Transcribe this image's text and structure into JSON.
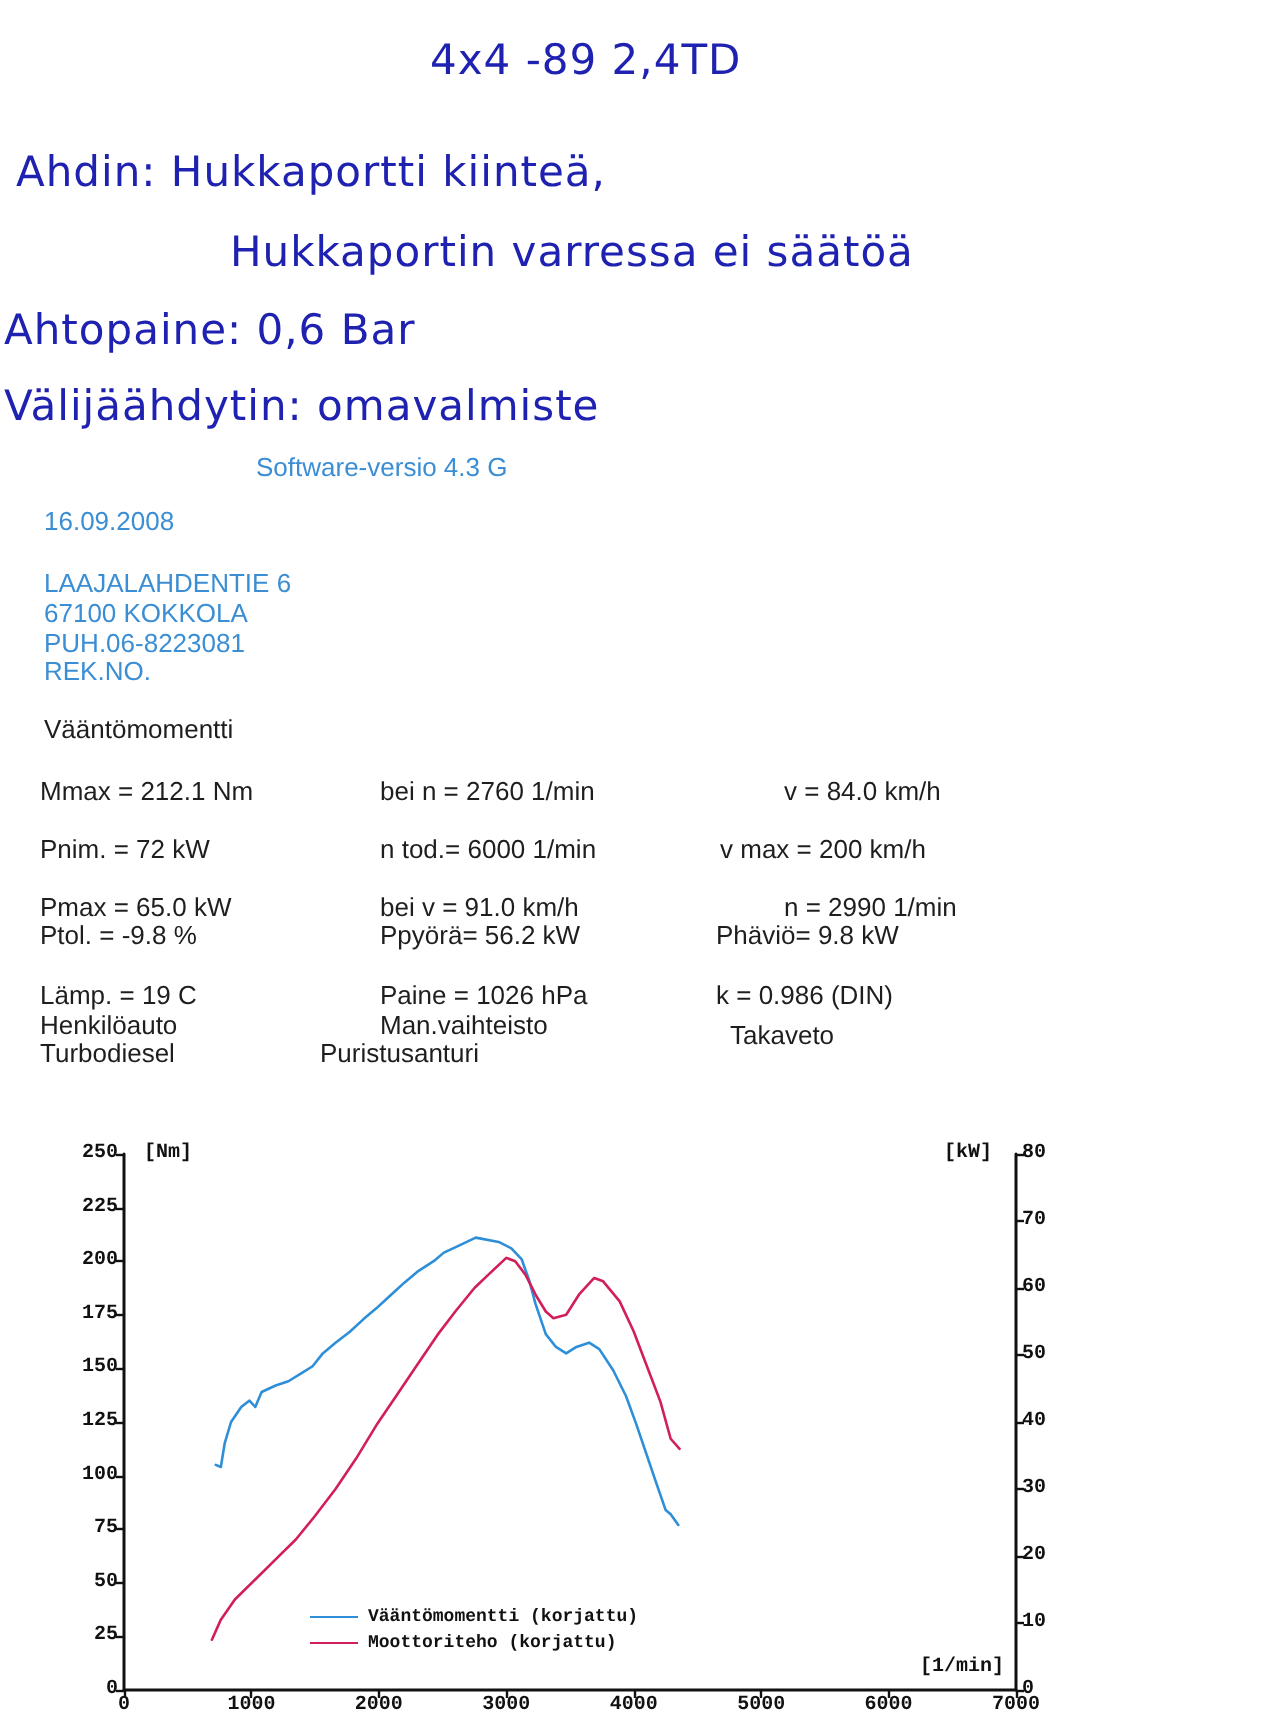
{
  "chart_data": {
    "type": "line",
    "title": "4x4 -89 2,4TD",
    "annotations": [
      "Ahdin: Hukkaportti kiinteä,",
      "Hukkaportin varressa ei säätöä",
      "Ahtopaine: 0,6 Bar",
      "Välijäähdytin: omavalmiste",
      "Software-versio 4.3 G",
      "16.09.2008",
      "LAAJALAHDENTIE 6",
      "67100 KOKKOLA",
      "PUH.06-8223081",
      "REK.NO.",
      "Vääntömomentti",
      "Mmax = 212.1 Nm",
      "bei n = 2760 1/min",
      "v = 84.0 km/h",
      "Pnim. = 72 kW",
      "n tod.= 6000 1/min",
      "v max = 200 km/h",
      "Pmax = 65.0 kW",
      "bei v = 91.0 km/h",
      "n = 2990 1/min",
      "Ptol. = -9.8 %",
      "Ppyörä= 56.2 kW",
      "Phäviö= 9.8 kW",
      "Lämp. = 19 C",
      "Paine = 1026 hPa",
      "k = 0.986 (DIN)",
      "Henkilöauto",
      "Man.vaihteisto",
      "Takaveto",
      "Turbodiesel",
      "Puristusanturi"
    ],
    "xlabel": "[1/min]",
    "ylabel": "[Nm]",
    "y2label": "[kW]",
    "xlim": [
      0,
      7000
    ],
    "xticks": [
      0,
      1000,
      2000,
      3000,
      4000,
      5000,
      6000,
      7000
    ],
    "ylim": [
      0,
      250
    ],
    "yticks": [
      0,
      25,
      50,
      75,
      100,
      125,
      150,
      175,
      200,
      225,
      250
    ],
    "y2lim": [
      0,
      80
    ],
    "y2ticks": [
      0,
      10,
      20,
      30,
      40,
      50,
      60,
      70,
      80
    ],
    "series": [
      {
        "name": "Vääntömomentti (korjattu)",
        "color": "#2e8fd8",
        "x": [
          720,
          760,
          790,
          840,
          920,
          985,
          1030,
          1080,
          1190,
          1290,
          1400,
          1480,
          1560,
          1660,
          1770,
          1880,
          1980,
          2090,
          2200,
          2300,
          2430,
          2510,
          2620,
          2760,
          2940,
          3040,
          3120,
          3180,
          3230,
          3310,
          3390,
          3470,
          3550,
          3650,
          3730,
          3840,
          3940,
          4020,
          4100,
          4180,
          4250,
          4290,
          4350
        ],
        "values": [
          105,
          104,
          115,
          125,
          132,
          135,
          132,
          139,
          142,
          144,
          148,
          151,
          157,
          162,
          167,
          173,
          178,
          184,
          190,
          195,
          200,
          204,
          207,
          211,
          209,
          206,
          201,
          191,
          180,
          166,
          160,
          157,
          160,
          162,
          159,
          149,
          137,
          124,
          110,
          96,
          84,
          82,
          77
        ]
      },
      {
        "name": "Moottoriteho (korjattu)",
        "color": "#d21f5a",
        "axis": "y2",
        "x": [
          690,
          760,
          870,
          1030,
          1190,
          1350,
          1500,
          1660,
          1820,
          1980,
          2140,
          2300,
          2460,
          2600,
          2750,
          2860,
          3000,
          3070,
          3150,
          3230,
          3310,
          3370,
          3470,
          3570,
          3690,
          3760,
          3890,
          4000,
          4100,
          4210,
          4290,
          4360
        ],
        "values": [
          7.5,
          10.5,
          13.5,
          16.5,
          19.5,
          22.5,
          26,
          30,
          34.5,
          39.5,
          44,
          48.5,
          53,
          56.5,
          60,
          62,
          64.5,
          64,
          62,
          59,
          56.5,
          55.5,
          56,
          59,
          61.5,
          61,
          58,
          53.5,
          48.5,
          43,
          37.5,
          36
        ]
      }
    ],
    "grid": false,
    "legend": "bottom left",
    "marker": "none",
    "line_style": "solid"
  }
}
